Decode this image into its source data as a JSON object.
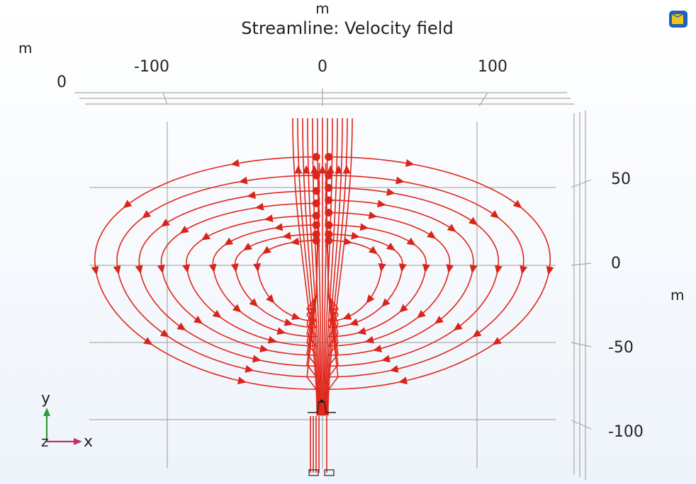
{
  "chart_data": {
    "type": "streamline",
    "title": "Streamline: Velocity field",
    "x_unit": "m",
    "y_unit": "m",
    "top_unit": "m",
    "top_ticks": [
      "-100",
      "0",
      "100"
    ],
    "left_tick": "0",
    "right_ticks": [
      "50",
      "0",
      "-50",
      "-100"
    ],
    "triad": {
      "y": "y",
      "x": "x",
      "z": "z"
    },
    "colors": {
      "stream": "#e0261b",
      "triad_y": "#2e9c3a",
      "triad_x": "#c0306a"
    },
    "loops": [
      {
        "side": "left",
        "x_ext": 150,
        "y_top": 70,
        "y_bottom": -80
      },
      {
        "side": "left",
        "x_ext": 135,
        "y_top": 58,
        "y_bottom": -72
      },
      {
        "side": "left",
        "x_ext": 120,
        "y_top": 48,
        "y_bottom": -65
      },
      {
        "side": "left",
        "x_ext": 105,
        "y_top": 40,
        "y_bottom": -58
      },
      {
        "side": "left",
        "x_ext": 88,
        "y_top": 32,
        "y_bottom": -52
      },
      {
        "side": "left",
        "x_ext": 70,
        "y_top": 26,
        "y_bottom": -46
      },
      {
        "side": "left",
        "x_ext": 55,
        "y_top": 20,
        "y_bottom": -40
      },
      {
        "side": "left",
        "x_ext": 40,
        "y_top": 16,
        "y_bottom": -36
      },
      {
        "side": "right",
        "x_ext": 150,
        "y_top": 70,
        "y_bottom": -80
      },
      {
        "side": "right",
        "x_ext": 132,
        "y_top": 58,
        "y_bottom": -72
      },
      {
        "side": "right",
        "x_ext": 115,
        "y_top": 50,
        "y_bottom": -65
      },
      {
        "side": "right",
        "x_ext": 98,
        "y_top": 42,
        "y_bottom": -58
      },
      {
        "side": "right",
        "x_ext": 82,
        "y_top": 34,
        "y_bottom": -52
      },
      {
        "side": "right",
        "x_ext": 66,
        "y_top": 26,
        "y_bottom": -46
      },
      {
        "side": "right",
        "x_ext": 50,
        "y_top": 20,
        "y_bottom": -40
      },
      {
        "side": "right",
        "x_ext": 36,
        "y_top": 16,
        "y_bottom": -36
      }
    ]
  }
}
